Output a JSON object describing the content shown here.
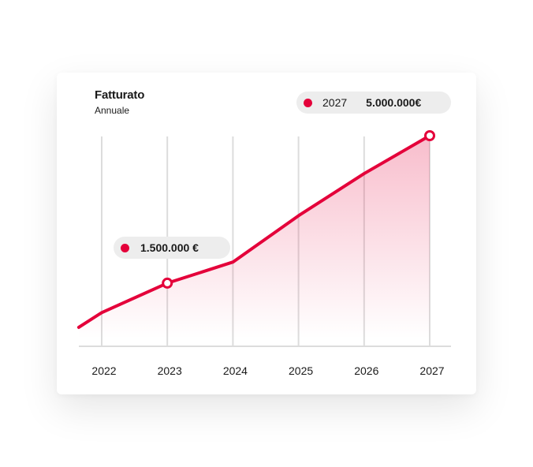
{
  "header": {
    "title": "Fatturato",
    "subtitle": "Annuale"
  },
  "tooltip_top": {
    "year": "2027",
    "value": "5.000.000€"
  },
  "tooltip_mid": {
    "value": "1.500.000 €"
  },
  "colors": {
    "accent": "#e4003a",
    "grid": "#dcdcdc",
    "pill_bg": "#ededed",
    "text": "#1a1a1a"
  },
  "chart_data": {
    "type": "area",
    "title": "Fatturato",
    "subtitle": "Annuale",
    "xlabel": "",
    "ylabel": "",
    "categories": [
      "2022",
      "2023",
      "2024",
      "2025",
      "2026",
      "2027"
    ],
    "x": [
      2021.65,
      2022,
      2023,
      2024,
      2025,
      2026,
      2027
    ],
    "series": [
      {
        "values": [
          0.45,
          0.8,
          1.5,
          2.0,
          3.1,
          4.1,
          5.0
        ]
      }
    ],
    "highlighted_points": [
      {
        "x": 2023,
        "y": 1.5,
        "label": "1.500.000 €"
      },
      {
        "x": 2027,
        "y": 5.0,
        "label": "5.000.000€"
      }
    ],
    "unit": "€",
    "ylim": [
      0,
      5.0
    ],
    "grid": "vertical",
    "legend": "none"
  }
}
